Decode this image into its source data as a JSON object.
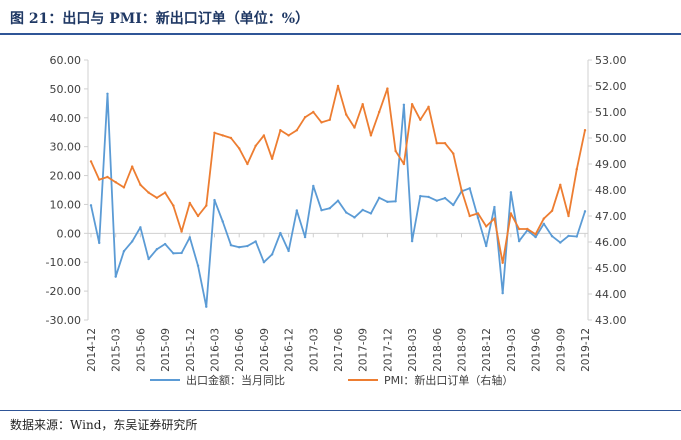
{
  "header": {
    "title": "图 21：出口与 PMI：新出口订单（单位：%）"
  },
  "footer": {
    "source": "数据来源：Wind，东吴证券研究所"
  },
  "colors": {
    "blue_series": "#5b9bd5",
    "orange_series": "#ed7d31",
    "axis": "#d0d0d0",
    "text": "#404040"
  },
  "chart_data": {
    "type": "line",
    "title": "出口与 PMI：新出口订单（单位：%）",
    "x": [
      "2014-12",
      "2015-01",
      "2015-02",
      "2015-03",
      "2015-04",
      "2015-05",
      "2015-06",
      "2015-07",
      "2015-08",
      "2015-09",
      "2015-10",
      "2015-11",
      "2015-12",
      "2016-01",
      "2016-02",
      "2016-03",
      "2016-04",
      "2016-05",
      "2016-06",
      "2016-07",
      "2016-08",
      "2016-09",
      "2016-10",
      "2016-11",
      "2016-12",
      "2017-01",
      "2017-02",
      "2017-03",
      "2017-04",
      "2017-05",
      "2017-06",
      "2017-07",
      "2017-08",
      "2017-09",
      "2017-10",
      "2017-11",
      "2017-12",
      "2018-01",
      "2018-02",
      "2018-03",
      "2018-04",
      "2018-05",
      "2018-06",
      "2018-07",
      "2018-08",
      "2018-09",
      "2018-10",
      "2018-11",
      "2018-12",
      "2019-01",
      "2019-02",
      "2019-03",
      "2019-04",
      "2019-05",
      "2019-06",
      "2019-07",
      "2019-08",
      "2019-09",
      "2019-10",
      "2019-11",
      "2019-12"
    ],
    "x_tick_labels": [
      "2014-12",
      "2015-03",
      "2015-06",
      "2015-09",
      "2015-12",
      "2016-03",
      "2016-06",
      "2016-09",
      "2016-12",
      "2017-03",
      "2017-06",
      "2017-09",
      "2017-12",
      "2018-03",
      "2018-06",
      "2018-09",
      "2018-12",
      "2019-03",
      "2019-06",
      "2019-09",
      "2019-12"
    ],
    "y_left": {
      "ylim": [
        -30,
        60
      ],
      "ticks": [
        "-30.00",
        "-20.00",
        "-10.00",
        "0.00",
        "10.00",
        "20.00",
        "30.00",
        "40.00",
        "50.00",
        "60.00"
      ]
    },
    "y_right": {
      "ylim": [
        43,
        53
      ],
      "ticks": [
        "43.00",
        "44.00",
        "45.00",
        "46.00",
        "47.00",
        "48.00",
        "49.00",
        "50.00",
        "51.00",
        "52.00",
        "53.00"
      ]
    },
    "series": [
      {
        "name": "出口金额：当月同比",
        "axis": "left",
        "color": "#5b9bd5",
        "values": [
          9.7,
          -3.3,
          48.3,
          -15,
          -6.2,
          -2.8,
          2.1,
          -8.9,
          -5.5,
          -3.7,
          -6.9,
          -6.8,
          -1.4,
          -11.2,
          -25.4,
          11.5,
          4.1,
          -4.1,
          -4.8,
          -4.4,
          -2.8,
          -10,
          -7.3,
          0.1,
          -6.1,
          7.9,
          -1.3,
          16.4,
          8,
          8.7,
          11.3,
          7.2,
          5.5,
          8.1,
          6.9,
          12.3,
          10.9,
          11.1,
          44.5,
          -2.7,
          12.9,
          12.6,
          11.3,
          12.2,
          9.8,
          14.5,
          15.6,
          5.4,
          -4.4,
          9.1,
          -20.7,
          14.2,
          -2.7,
          1.1,
          -1.3,
          3.3,
          -1,
          -3.2,
          -0.9,
          -1.1,
          7.6
        ]
      },
      {
        "name": "PMI：新出口订单（右轴）",
        "axis": "right",
        "color": "#ed7d31",
        "values": [
          49.1,
          48.4,
          48.5,
          48.3,
          48.1,
          48.9,
          48.2,
          47.9,
          47.7,
          47.9,
          47.4,
          46.4,
          47.5,
          47.0,
          47.4,
          50.2,
          50.1,
          50.0,
          49.6,
          49.0,
          49.7,
          50.1,
          49.2,
          50.3,
          50.1,
          50.3,
          50.8,
          51.0,
          50.6,
          50.7,
          52.0,
          50.9,
          50.4,
          51.3,
          50.1,
          51.0,
          51.9,
          49.5,
          49.0,
          51.3,
          50.7,
          51.2,
          49.8,
          49.8,
          49.4,
          48.0,
          47.0,
          47.1,
          46.6,
          46.9,
          45.2,
          47.1,
          46.5,
          46.5,
          46.3,
          46.9,
          47.2,
          48.2,
          47.0,
          48.8,
          50.3
        ]
      }
    ],
    "legend": {
      "position": "bottom",
      "entries": [
        "出口金额：当月同比",
        "PMI：新出口订单（右轴）"
      ]
    },
    "grid": false
  }
}
